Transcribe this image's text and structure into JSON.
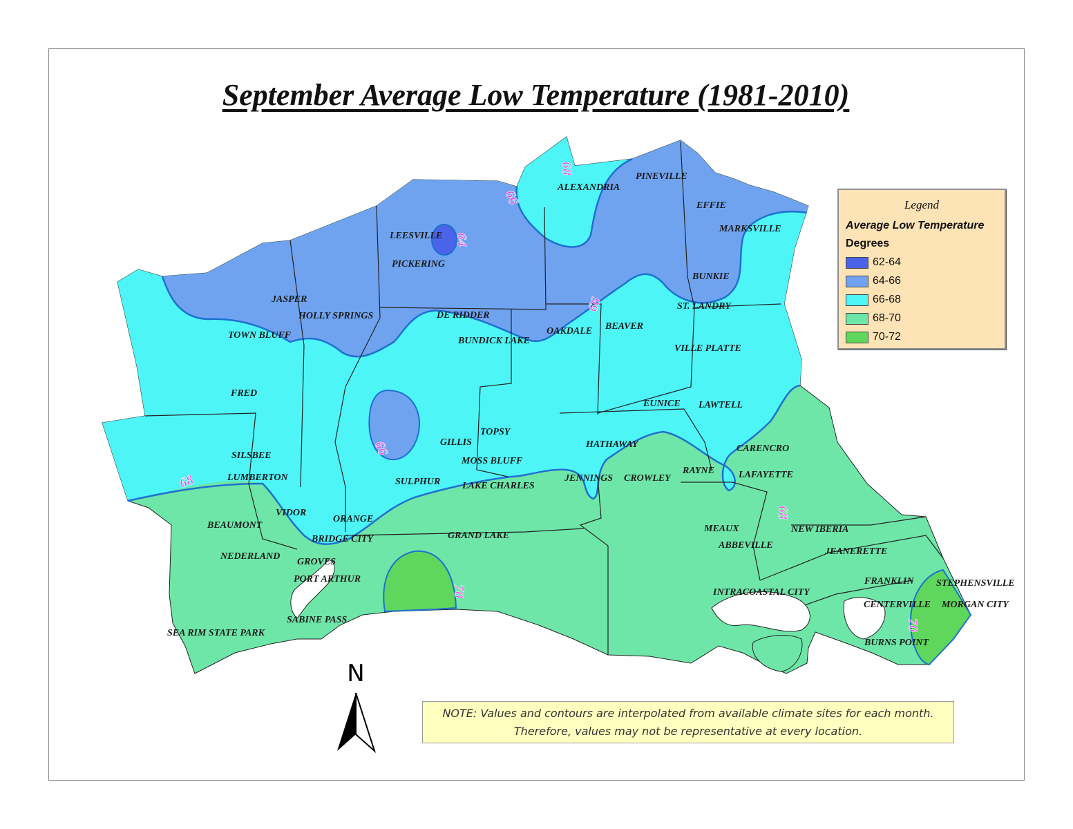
{
  "title": "September Average Low Temperature (1981-2010)",
  "legend": {
    "title": "Legend",
    "subtitle": "Average Low Temperature",
    "units": "Degrees",
    "items": [
      {
        "label": "62-64",
        "color": "#4a63e8"
      },
      {
        "label": "64-66",
        "color": "#6fa3f0"
      },
      {
        "label": "66-68",
        "color": "#4ef5f7"
      },
      {
        "label": "68-70",
        "color": "#6ee6a8"
      },
      {
        "label": "70-72",
        "color": "#5fd65c"
      }
    ]
  },
  "contour_labels": [
    "64",
    "66",
    "66",
    "66",
    "68",
    "68",
    "68",
    "70",
    "70"
  ],
  "places": [
    "PINEVILLE",
    "ALEXANDRIA",
    "EFFIE",
    "MARKSVILLE",
    "LEESVILLE",
    "PICKERING",
    "BUNKIE",
    "JASPER",
    "HOLLY SPRINGS",
    "DE RIDDER",
    "ST. LANDRY",
    "OAKDALE",
    "BEAVER",
    "TOWN BLUFF",
    "BUNDICK LAKE",
    "VILLE PLATTE",
    "FRED",
    "EUNICE",
    "LAWTELL",
    "TOPSY",
    "GILLIS",
    "HATHAWAY",
    "CARENCRO",
    "SILSBEE",
    "MOSS BLUFF",
    "RAYNE",
    "LUMBERTON",
    "SULPHUR",
    "JENNINGS",
    "CROWLEY",
    "LAFAYETTE",
    "LAKE CHARLES",
    "VIDOR",
    "ORANGE",
    "BEAUMONT",
    "MEAUX",
    "NEW IBERIA",
    "BRIDGE CITY",
    "GRAND LAKE",
    "ABBEVILLE",
    "NEDERLAND",
    "GROVES",
    "JEANERETTE",
    "PORT ARTHUR",
    "FRANKLIN",
    "STEPHENSVILLE",
    "INTRACOASTAL CITY",
    "CENTERVILLE",
    "MORGAN CITY",
    "SABINE PASS",
    "SEA RIM STATE PARK",
    "BURNS POINT"
  ],
  "north_arrow": "N",
  "note": {
    "line1": "NOTE: Values and contours are interpolated from available climate sites for each month.",
    "line2": "Therefore, values may not be representative at every location."
  }
}
